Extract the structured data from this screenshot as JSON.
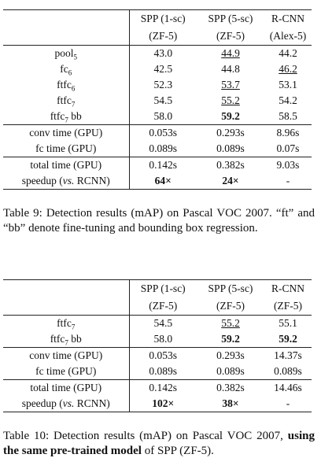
{
  "table9": {
    "columns": [
      {
        "name": "SPP (1-sc)",
        "model": "(ZF-5)"
      },
      {
        "name": "SPP (5-sc)",
        "model": "(ZF-5)"
      },
      {
        "name": "R-CNN",
        "model": "(Alex-5)"
      }
    ],
    "body": [
      [
        {
          "label": {
            "text": "pool",
            "sub": "5"
          },
          "cells": [
            "43.0",
            {
              "text": "44.9",
              "underline": true
            },
            "44.2"
          ]
        },
        {
          "label": {
            "text": "fc",
            "sub": "6"
          },
          "cells": [
            "42.5",
            "44.8",
            {
              "text": "46.2",
              "underline": true
            }
          ]
        },
        {
          "label": {
            "text": "ftfc",
            "sub": "6"
          },
          "cells": [
            "52.3",
            {
              "text": "53.7",
              "underline": true
            },
            "53.1"
          ]
        },
        {
          "label": {
            "text": "ftfc",
            "sub": "7"
          },
          "cells": [
            "54.5",
            {
              "text": "55.2",
              "underline": true
            },
            "54.2"
          ]
        },
        {
          "label": {
            "text": "ftfc",
            "sub": "7",
            "suffix": " bb"
          },
          "cells": [
            "58.0",
            {
              "text": "59.2",
              "bold": true
            },
            "58.5"
          ]
        }
      ],
      [
        {
          "label": {
            "text": "conv time (GPU)"
          },
          "cells": [
            "0.053s",
            "0.293s",
            "8.96s"
          ]
        },
        {
          "label": {
            "text": "fc time (GPU)"
          },
          "cells": [
            "0.089s",
            "0.089s",
            "0.07s"
          ]
        }
      ],
      [
        {
          "label": {
            "text": "total time (GPU)"
          },
          "cells": [
            "0.142s",
            "0.382s",
            "9.03s"
          ]
        },
        {
          "label": {
            "text": "speedup (",
            "em": "vs.",
            "suffix": " RCNN)"
          },
          "cells": [
            {
              "text": "64×",
              "bold": true
            },
            {
              "text": "24×",
              "bold": true
            },
            "-"
          ]
        }
      ]
    ],
    "caption": {
      "text": "Table 9: Detection results (mAP) on Pascal VOC 2007. “ft” and “bb” denote fine-tuning and bounding box regression."
    }
  },
  "table10": {
    "columns": [
      {
        "name": "SPP (1-sc)",
        "model": "(ZF-5)"
      },
      {
        "name": "SPP (5-sc)",
        "model": "(ZF-5)"
      },
      {
        "name": "R-CNN",
        "model": "(ZF-5)"
      }
    ],
    "body": [
      [
        {
          "label": {
            "text": "ftfc",
            "sub": "7"
          },
          "cells": [
            "54.5",
            {
              "text": "55.2",
              "underline": true
            },
            "55.1"
          ]
        },
        {
          "label": {
            "text": "ftfc",
            "sub": "7",
            "suffix": " bb"
          },
          "cells": [
            "58.0",
            {
              "text": "59.2",
              "bold": true
            },
            {
              "text": "59.2",
              "bold": true
            }
          ]
        }
      ],
      [
        {
          "label": {
            "text": "conv time (GPU)"
          },
          "cells": [
            "0.053s",
            "0.293s",
            "14.37s"
          ]
        },
        {
          "label": {
            "text": "fc time (GPU)"
          },
          "cells": [
            "0.089s",
            "0.089s",
            "0.089s"
          ]
        }
      ],
      [
        {
          "label": {
            "text": "total time (GPU)"
          },
          "cells": [
            "0.142s",
            "0.382s",
            "14.46s"
          ]
        },
        {
          "label": {
            "text": "speedup (",
            "em": "vs.",
            "suffix": " RCNN)"
          },
          "cells": [
            {
              "text": "102×",
              "bold": true
            },
            {
              "text": "38×",
              "bold": true
            },
            "-"
          ]
        }
      ]
    ],
    "caption": {
      "text": "Table 10: Detection results (mAP) on Pascal VOC 2007, ",
      "bold": "using the same pre-trained model",
      "suffix": " of SPP (ZF-5)."
    }
  }
}
